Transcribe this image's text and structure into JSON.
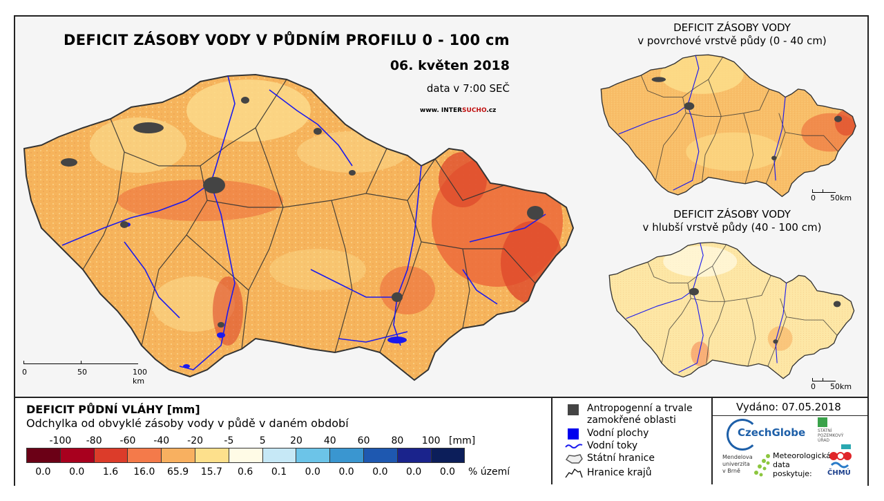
{
  "main_title": "DEFICIT ZÁSOBY VODY V PŮDNÍM PROFILU 0 - 100 cm",
  "date": "06. květen 2018",
  "data_time": "data v 7:00 SEČ",
  "website": {
    "prefix": "www. INTER",
    "highlight": "SUCHO",
    "suffix": ".cz"
  },
  "inset_top": {
    "title_line1": "DEFICIT ZÁSOBY VODY",
    "title_line2": "v povrchové vrstvě půdy (0 - 40 cm)"
  },
  "inset_bottom": {
    "title_line1": "DEFICIT ZÁSOBY VODY",
    "title_line2": "v hlubší vrstvě půdy (40 - 100 cm)"
  },
  "scale_main": {
    "labels": [
      "0",
      "50",
      "100 km"
    ]
  },
  "scale_inset": {
    "labels": [
      "0",
      "50km"
    ]
  },
  "legend": {
    "title": "DEFICIT PŮDNÍ VLÁHY [mm]",
    "subtitle": "Odchylka od obvyklé zásoby vody v půdě v daném období",
    "breaks": [
      "-100",
      "-80",
      "-60",
      "-40",
      "-20",
      "-5",
      "5",
      "20",
      "40",
      "60",
      "80",
      "100"
    ],
    "break_unit": "[mm]",
    "colors": [
      "#6b0016",
      "#a8001e",
      "#dc3c2a",
      "#f47a4a",
      "#f8b060",
      "#fde08c",
      "#fffbe6",
      "#c6e8f6",
      "#6cc4e8",
      "#3a96d0",
      "#1e58b0",
      "#1a238c",
      "#0c1e5a"
    ],
    "percentages": [
      "0.0",
      "0.0",
      "1.6",
      "16.0",
      "65.9",
      "15.7",
      "0.6",
      "0.1",
      "0.0",
      "0.0",
      "0.0",
      "0.0",
      "0.0"
    ],
    "percent_unit": "% území"
  },
  "symbols": {
    "urban": "Antropogenní a trvale zamokřené oblasti",
    "water_bodies": "Vodní plochy",
    "rivers": "Vodní toky",
    "state_border": "Státní hranice",
    "regions": "Hranice krajů"
  },
  "issued": "Vydáno: 07.05.2018",
  "logos": {
    "czechglobe": "CzechGlobe",
    "spu": [
      "STÁTNÍ",
      "POZEMKOVÝ",
      "ÚŘAD"
    ],
    "mendel": [
      "Mendelova",
      "univerzita",
      "v Brně"
    ],
    "meteo": [
      "Meteorologická",
      "data",
      "poskytuje:"
    ],
    "chmu": "ČHMÚ"
  },
  "map_colors": {
    "base": "#f6b45c",
    "dry": "#ec6a3a",
    "very_dry": "#de4a2c",
    "moist": "#fbd98a",
    "urban": "#444444",
    "water": "#1a1aee"
  }
}
